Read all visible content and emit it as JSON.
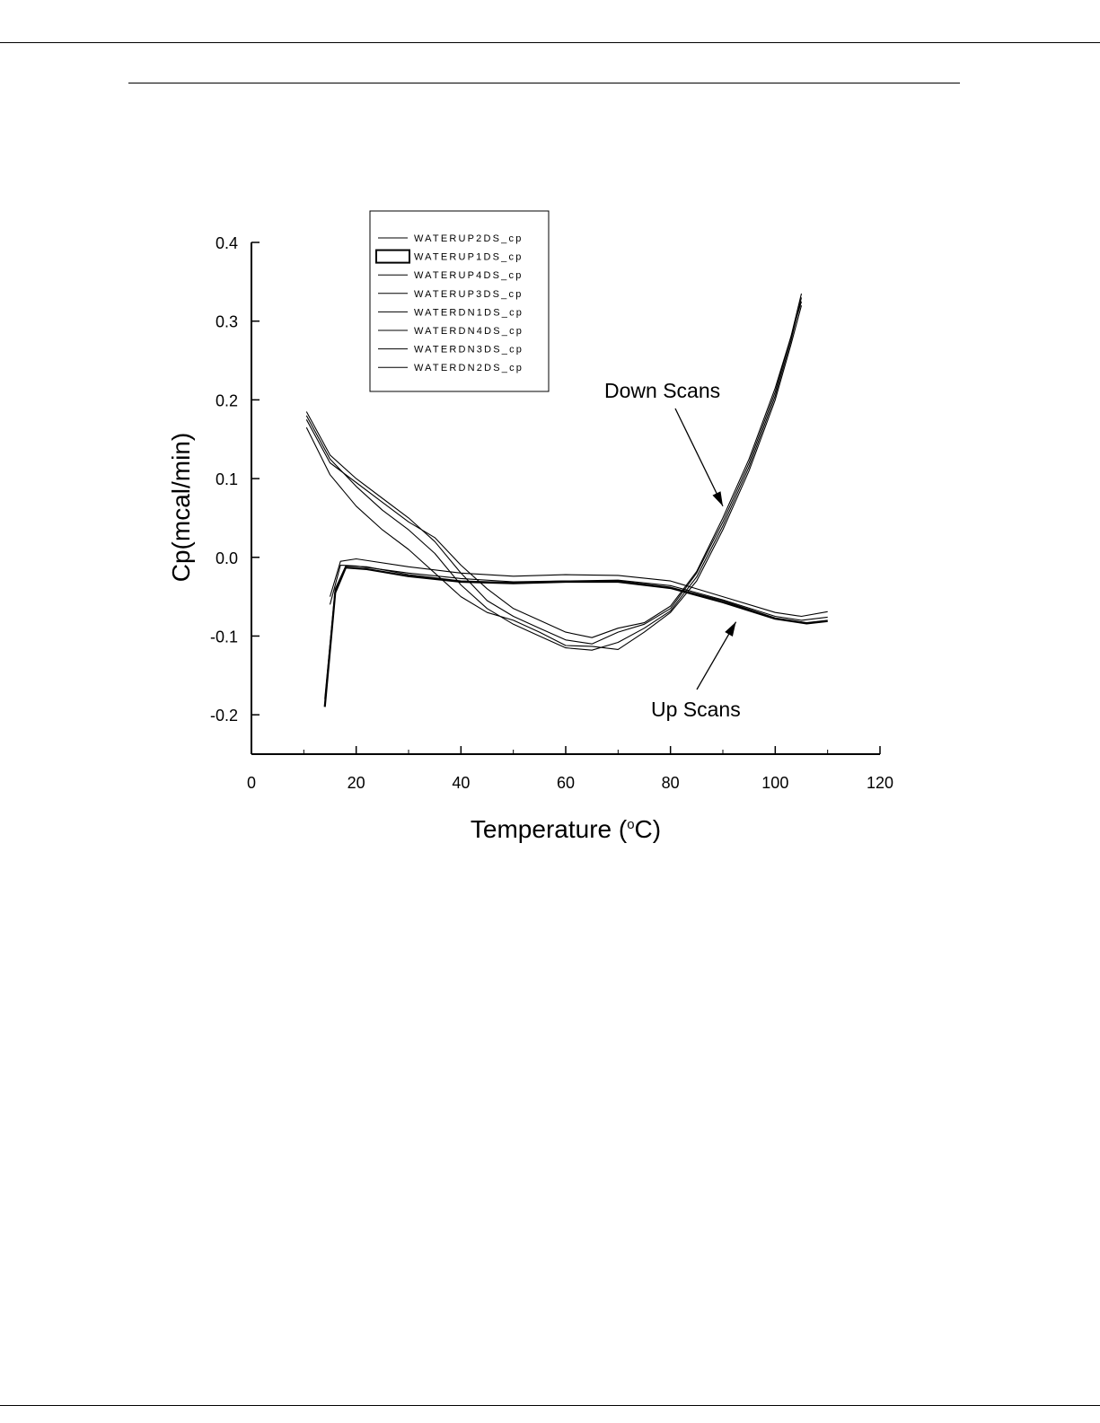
{
  "chart_data": {
    "type": "line",
    "xlabel": "Temperature (",
    "xlabel_sup": "o",
    "xlabel_end": "C)",
    "ylabel": "Cp(mcal/min)",
    "xlim": [
      0,
      120
    ],
    "ylim": [
      -0.25,
      0.4
    ],
    "x_ticks": [
      "0",
      "20",
      "40",
      "60",
      "80",
      "100",
      "120"
    ],
    "y_ticks": [
      "0.4",
      "0.3",
      "0.2",
      "0.1",
      "0.0",
      "-0.1",
      "-0.2"
    ],
    "x_tick_values": [
      0,
      20,
      40,
      60,
      80,
      100,
      120
    ],
    "y_tick_values": [
      0.4,
      0.3,
      0.2,
      0.1,
      0.0,
      -0.1,
      -0.2
    ],
    "grid": false,
    "legend_position": "top-left",
    "legend": [
      "WATERUP2DS_cp",
      "WATERUP1DS_cp",
      "WATERUP4DS_cp",
      "WATERUP3DS_cp",
      "WATERDN1DS_cp",
      "WATERDN4DS_cp",
      "WATERDN3DS_cp",
      "WATERDN2DS_cp"
    ],
    "annotations": [
      {
        "text": "Down Scans",
        "arrow_to": [
          90,
          0.065
        ]
      },
      {
        "text": "Up Scans",
        "arrow_to": [
          92.5,
          -0.082
        ]
      }
    ],
    "series": [
      {
        "name": "WATERUP2DS_cp",
        "x": [
          14,
          16,
          18,
          22,
          30,
          40,
          50,
          60,
          70,
          80,
          90,
          100,
          106,
          110
        ],
        "y": [
          -0.18,
          -0.04,
          -0.011,
          -0.012,
          -0.022,
          -0.03,
          -0.032,
          -0.03,
          -0.03,
          -0.038,
          -0.055,
          -0.077,
          -0.083,
          -0.08
        ]
      },
      {
        "name": "WATERUP1DS_cp",
        "x": [
          14,
          16,
          18,
          22,
          30,
          40,
          50,
          60,
          70,
          80,
          90,
          100,
          106,
          110
        ],
        "y": [
          -0.19,
          -0.045,
          -0.013,
          -0.015,
          -0.024,
          -0.031,
          -0.033,
          -0.031,
          -0.031,
          -0.039,
          -0.057,
          -0.078,
          -0.084,
          -0.081
        ]
      },
      {
        "name": "WATERUP4DS_cp",
        "x": [
          15,
          17,
          20,
          30,
          40,
          50,
          60,
          70,
          80,
          90,
          100,
          105,
          110
        ],
        "y": [
          -0.05,
          -0.005,
          -0.002,
          -0.012,
          -0.02,
          -0.024,
          -0.022,
          -0.023,
          -0.03,
          -0.05,
          -0.07,
          -0.075,
          -0.069
        ]
      },
      {
        "name": "WATERUP3DS_cp",
        "x": [
          15,
          17,
          20,
          30,
          40,
          50,
          60,
          70,
          80,
          90,
          100,
          105,
          110
        ],
        "y": [
          -0.06,
          -0.01,
          -0.011,
          -0.02,
          -0.027,
          -0.031,
          -0.03,
          -0.029,
          -0.036,
          -0.054,
          -0.075,
          -0.08,
          -0.076
        ]
      },
      {
        "name": "WATERDN1DS_cp",
        "x": [
          10.5,
          15,
          20,
          25,
          30,
          35,
          40,
          45,
          50,
          55,
          60,
          65,
          70,
          75,
          80,
          85,
          90,
          95,
          100,
          103,
          105
        ],
        "y": [
          0.185,
          0.13,
          0.1,
          0.075,
          0.05,
          0.02,
          -0.02,
          -0.055,
          -0.075,
          -0.09,
          -0.105,
          -0.11,
          -0.095,
          -0.085,
          -0.065,
          -0.02,
          0.045,
          0.12,
          0.21,
          0.28,
          0.335
        ]
      },
      {
        "name": "WATERDN4DS_cp",
        "x": [
          10.5,
          15,
          20,
          25,
          30,
          35,
          40,
          45,
          50,
          55,
          60,
          65,
          70,
          75,
          80,
          85,
          90,
          95,
          100,
          103,
          105
        ],
        "y": [
          0.18,
          0.125,
          0.09,
          0.06,
          0.035,
          0.005,
          -0.035,
          -0.065,
          -0.085,
          -0.1,
          -0.115,
          -0.118,
          -0.108,
          -0.09,
          -0.068,
          -0.025,
          0.04,
          0.115,
          0.205,
          0.275,
          0.33
        ]
      },
      {
        "name": "WATERDN3DS_cp",
        "x": [
          10.5,
          15,
          20,
          25,
          30,
          35,
          40,
          45,
          50,
          55,
          60,
          65,
          70,
          75,
          80,
          85,
          90,
          95,
          100,
          103,
          105
        ],
        "y": [
          0.175,
          0.12,
          0.095,
          0.07,
          0.045,
          0.025,
          -0.01,
          -0.04,
          -0.065,
          -0.08,
          -0.095,
          -0.102,
          -0.09,
          -0.083,
          -0.062,
          -0.018,
          0.05,
          0.125,
          0.215,
          0.28,
          0.325
        ]
      },
      {
        "name": "WATERDN2DS_cp",
        "x": [
          10.5,
          15,
          20,
          25,
          30,
          35,
          40,
          45,
          50,
          55,
          60,
          65,
          70,
          75,
          80,
          85,
          90,
          95,
          100,
          103,
          105
        ],
        "y": [
          0.165,
          0.105,
          0.065,
          0.035,
          0.01,
          -0.02,
          -0.05,
          -0.07,
          -0.08,
          -0.095,
          -0.112,
          -0.113,
          -0.117,
          -0.095,
          -0.07,
          -0.03,
          0.035,
          0.11,
          0.2,
          0.27,
          0.32
        ]
      }
    ]
  }
}
